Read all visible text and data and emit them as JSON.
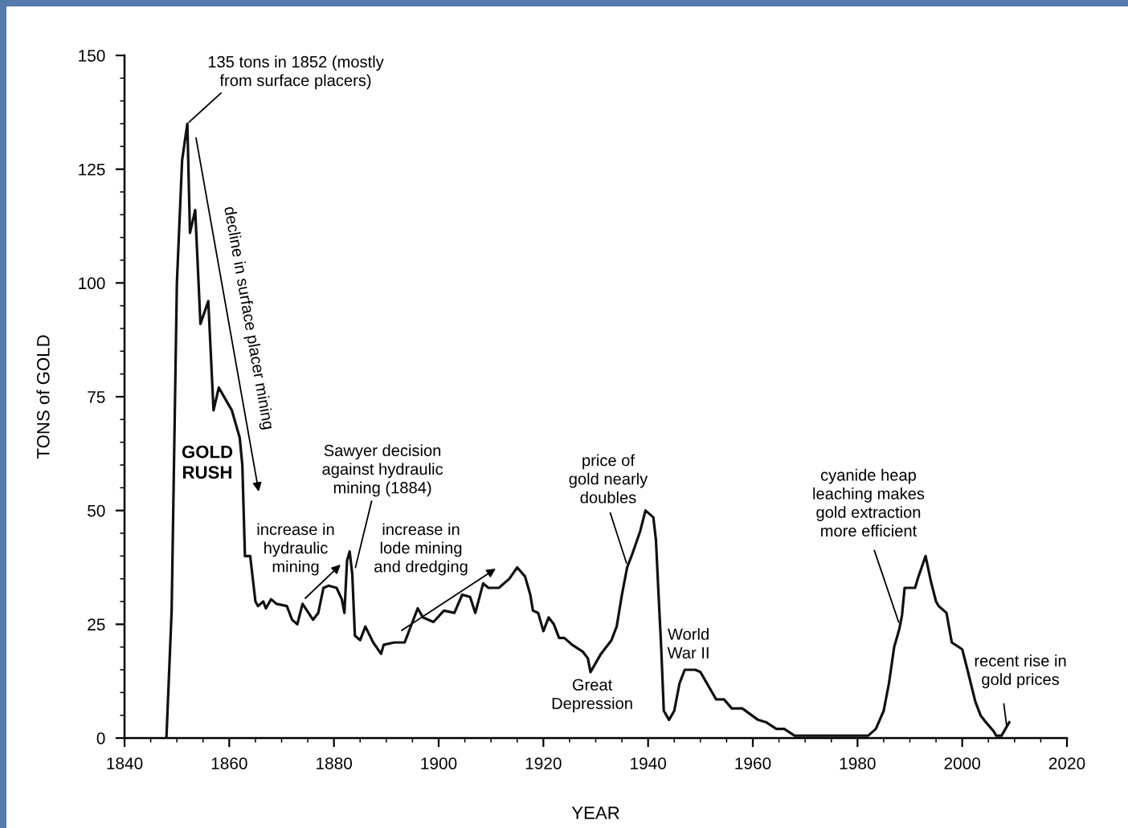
{
  "chart_data": {
    "type": "line",
    "xlabel": "YEAR",
    "ylabel": "TONS of GOLD",
    "x": [
      1848,
      1849,
      1850,
      1851,
      1852,
      1852.5,
      1853.5,
      1854.5,
      1856,
      1857,
      1858,
      1860.5,
      1862,
      1862.5,
      1863,
      1864,
      1865,
      1865.5,
      1866.5,
      1867,
      1868,
      1869,
      1871,
      1872,
      1873,
      1874,
      1876,
      1877,
      1878,
      1879,
      1880.5,
      1881.5,
      1882,
      1882.5,
      1883,
      1883.5,
      1884,
      1885,
      1886,
      1887.5,
      1889,
      1889.5,
      1891.5,
      1893.5,
      1896,
      1897,
      1899,
      1901,
      1903,
      1904.5,
      1906,
      1907,
      1908.5,
      1909.5,
      1911.5,
      1913.5,
      1915,
      1916.5,
      1917.5,
      1918,
      1919,
      1920,
      1921,
      1922,
      1923,
      1924,
      1925.5,
      1927.5,
      1928.5,
      1929,
      1931,
      1933,
      1934,
      1935,
      1936,
      1937,
      1938.5,
      1939.5,
      1941,
      1941.5,
      1942,
      1942.5,
      1943,
      1944,
      1945,
      1946,
      1947,
      1949,
      1950,
      1952,
      1953,
      1954.5,
      1956,
      1958,
      1961,
      1962.5,
      1964.5,
      1966,
      1968,
      1970,
      1975,
      1978,
      1982,
      1983.5,
      1985,
      1986,
      1987,
      1988,
      1988.5,
      1989,
      1991,
      1991.5,
      1993,
      1994,
      1995,
      1995.5,
      1997,
      1998,
      2000,
      2001,
      2002.5,
      2003.5,
      2004.5,
      2006,
      2006.5,
      2007.5,
      2009
    ],
    "values": [
      0,
      28,
      100,
      127,
      135,
      111,
      116,
      91,
      96,
      72,
      77,
      72,
      66,
      60,
      40,
      40,
      30,
      29,
      30,
      28.5,
      30.5,
      29.5,
      29,
      26,
      25,
      29.5,
      26,
      27.5,
      33,
      33.5,
      33,
      30.5,
      27.5,
      39,
      41,
      36,
      22.5,
      21.5,
      24.5,
      21,
      18.5,
      20.5,
      21,
      21,
      28.5,
      26.5,
      25.5,
      28,
      27.5,
      31.5,
      31,
      27.5,
      34,
      33,
      33,
      35,
      37.5,
      35.5,
      31.5,
      28,
      27.5,
      23.5,
      26.5,
      25,
      22,
      22,
      20.5,
      19,
      17.5,
      14.5,
      18.5,
      21.5,
      24.5,
      31.5,
      37.5,
      40.5,
      45.5,
      50,
      48.5,
      43.5,
      31.5,
      20,
      6,
      4,
      6,
      12,
      15,
      15,
      14.5,
      10.5,
      8.5,
      8.5,
      6.5,
      6.5,
      4,
      3.5,
      2,
      2,
      0.5,
      0.5,
      0.5,
      0.5,
      0.5,
      2,
      6,
      12,
      20,
      24,
      27,
      33,
      33,
      35,
      40,
      34.5,
      30,
      29,
      27.5,
      21,
      19.5,
      15,
      8,
      5,
      3.5,
      1.5,
      0.5,
      0.5,
      3.5
    ],
    "color": "#111111",
    "xlim": [
      1840,
      2020
    ],
    "ylim": [
      0,
      150
    ],
    "xticks": [
      1840,
      {
        "value": 1845,
        "label": null
      },
      {
        "value": 1850,
        "label": null
      },
      {
        "value": 1855,
        "label": null
      },
      1860,
      {
        "value": 1865,
        "label": null
      },
      {
        "value": 1870,
        "label": null
      },
      {
        "value": 1875,
        "label": null
      },
      1880,
      {
        "value": 1885,
        "label": null
      },
      {
        "value": 1890,
        "label": null
      },
      {
        "value": 1895,
        "label": null
      },
      1900,
      {
        "value": 1905,
        "label": null
      },
      {
        "value": 1910,
        "label": null
      },
      {
        "value": 1915,
        "label": null
      },
      1920,
      {
        "value": 1925,
        "label": null
      },
      {
        "value": 1930,
        "label": null
      },
      {
        "value": 1935,
        "label": null
      },
      1940,
      {
        "value": 1945,
        "label": null
      },
      {
        "value": 1950,
        "label": null
      },
      {
        "value": 1955,
        "label": null
      },
      1960,
      {
        "value": 1965,
        "label": null
      },
      {
        "value": 1970,
        "label": null
      },
      {
        "value": 1975,
        "label": null
      },
      1980,
      {
        "value": 1985,
        "label": null
      },
      {
        "value": 1990,
        "label": null
      },
      {
        "value": 1995,
        "label": null
      },
      2000,
      {
        "value": 2005,
        "label": null
      },
      {
        "value": 2010,
        "label": null
      },
      {
        "value": 2015,
        "label": null
      },
      2020
    ],
    "yticks": [
      0,
      {
        "value": 5,
        "label": null
      },
      {
        "value": 10,
        "label": null
      },
      {
        "value": 15,
        "label": null
      },
      {
        "value": 20,
        "label": null
      },
      25,
      {
        "value": 30,
        "label": null
      },
      {
        "value": 35,
        "label": null
      },
      {
        "value": 40,
        "label": null
      },
      {
        "value": 45,
        "label": null
      },
      50,
      {
        "value": 55,
        "label": null
      },
      {
        "value": 60,
        "label": null
      },
      {
        "value": 65,
        "label": null
      },
      {
        "value": 70,
        "label": null
      },
      75,
      {
        "value": 80,
        "label": null
      },
      {
        "value": 85,
        "label": null
      },
      {
        "value": 90,
        "label": null
      },
      {
        "value": 95,
        "label": null
      },
      100,
      {
        "value": 105,
        "label": null
      },
      {
        "value": 110,
        "label": null
      },
      {
        "value": 115,
        "label": null
      },
      {
        "value": 120,
        "label": null
      },
      125,
      {
        "value": 130,
        "label": null
      },
      {
        "value": 135,
        "label": null
      },
      {
        "value": 140,
        "label": null
      },
      {
        "value": 145,
        "label": null
      },
      150
    ],
    "annotations": [
      {
        "text": "135 tons in 1852 (mostly\nfrom surface placers)",
        "x": 1852,
        "y": 135
      },
      "decline in surface placer mining",
      "GOLD\nRUSH",
      {
        "text": "Sawyer decision\nagainst hydraulic\nmining (1884)",
        "x": 1884,
        "y": 37
      },
      "increase in\nhydraulic\nmining",
      "increase in\nlode mining\nand dredging",
      {
        "text": "price of\ngold nearly\ndoubles",
        "x": 1936,
        "y": 38
      },
      "Great\nDepression",
      "World\nWar II",
      {
        "text": "cyanide heap\nleaching makes\ngold extraction\nmore efficient",
        "x": 1988,
        "y": 25
      },
      {
        "text": "recent rise in\ngold prices",
        "x": 2008.5,
        "y": 2.5
      }
    ]
  }
}
